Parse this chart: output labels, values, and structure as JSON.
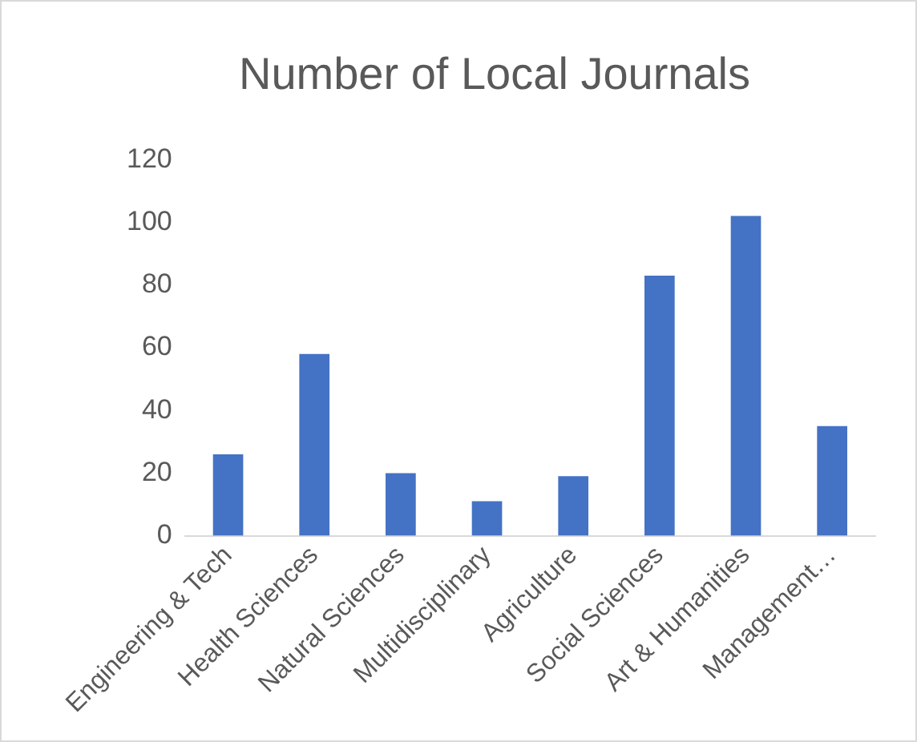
{
  "chart_data": {
    "type": "bar",
    "title": "Number of Local Journals",
    "categories": [
      "Engineering & Tech",
      "Health Sciences",
      "Natural Sciences",
      "Multidisciplinary",
      "Agriculture",
      "Social Sciences",
      "Art & Humanities",
      "Management…"
    ],
    "values": [
      26,
      58,
      20,
      11,
      19,
      83,
      102,
      35
    ],
    "color": "#4472c4",
    "ylim": [
      0,
      120
    ],
    "yticks": [
      0,
      20,
      40,
      60,
      80,
      100,
      120
    ],
    "grid": false,
    "legend": false
  }
}
